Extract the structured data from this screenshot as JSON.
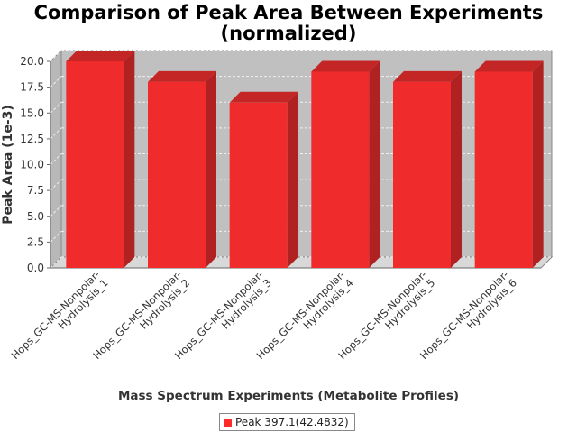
{
  "chart_data": {
    "type": "bar",
    "title": [
      "Comparison of Peak Area Between Experiments",
      "(normalized)"
    ],
    "xlabel": "Mass Spectrum Experiments (Metabolite Profiles)",
    "ylabel": "Peak Area (1e-3)",
    "ylim": [
      0,
      20.0
    ],
    "yticks": [
      "0.0",
      "2.5",
      "5.0",
      "7.5",
      "10.0",
      "12.5",
      "15.0",
      "17.5",
      "20.0"
    ],
    "categories": [
      [
        "Hops_GC-MS-Nonpolar-",
        "Hydrolysis_1"
      ],
      [
        "Hops_GC-MS-Nonpolar-",
        "Hydrolysis_2"
      ],
      [
        "Hops_GC-MS-Nonpolar-",
        "Hydrolysis_3"
      ],
      [
        "Hops_GC-MS-Nonpolar-",
        "Hydrolysis_4"
      ],
      [
        "Hops_GC-MS-Nonpolar-",
        "Hydrolysis_5"
      ],
      [
        "Hops_GC-MS-Nonpolar-",
        "Hydrolysis_6"
      ]
    ],
    "series": [
      {
        "name": "Peak 397.1(42.4832)",
        "values": [
          20.0,
          18.0,
          16.0,
          19.0,
          18.0,
          19.0
        ]
      }
    ],
    "grid": true,
    "legend": "bottom-center",
    "colors": {
      "bar_front": "#ef2b2b",
      "bar_side": "#b02222",
      "bar_top": "#c42626",
      "plot_background": "#c0c0c0",
      "plot_floor": "#d8d8d8",
      "legend_swatch": "#ff2a2a"
    }
  }
}
